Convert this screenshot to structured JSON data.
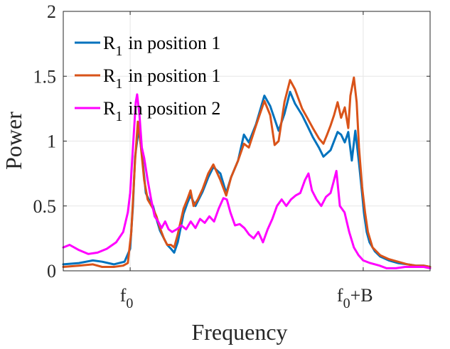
{
  "chart_data": {
    "type": "line",
    "title": "",
    "xlabel": "Frequency",
    "ylabel": "Power",
    "xlim": [
      -0.287,
      1.287
    ],
    "ylim": [
      0,
      2
    ],
    "grid": true,
    "legend_position": "top-left",
    "x_ticks": [
      {
        "value": 0,
        "base": "f",
        "sub": "0",
        "suffix": ""
      },
      {
        "value": 1,
        "base": "f",
        "sub": "0",
        "suffix": "+B"
      }
    ],
    "y_ticks": [
      {
        "value": 0,
        "label": "0"
      },
      {
        "value": 0.5,
        "label": "0.5"
      },
      {
        "value": 1,
        "label": "1"
      },
      {
        "value": 1.5,
        "label": "1.5"
      },
      {
        "value": 2,
        "label": "2"
      }
    ],
    "series": [
      {
        "name": "R1 in position 1",
        "legend": {
          "base": "R",
          "sub": "1",
          "rest": "in position 1"
        },
        "color": "#0072BD",
        "points": [
          [
            -0.287,
            0.05
          ],
          [
            -0.22,
            0.06
          ],
          [
            -0.16,
            0.08
          ],
          [
            -0.12,
            0.07
          ],
          [
            -0.07,
            0.05
          ],
          [
            -0.024,
            0.07
          ],
          [
            0,
            0.17
          ],
          [
            0.012,
            0.5
          ],
          [
            0.021,
            0.88
          ],
          [
            0.037,
            1.1
          ],
          [
            0.052,
            0.88
          ],
          [
            0.067,
            0.6
          ],
          [
            0.08,
            0.55
          ],
          [
            0.098,
            0.5
          ],
          [
            0.113,
            0.4
          ],
          [
            0.128,
            0.31
          ],
          [
            0.145,
            0.25
          ],
          [
            0.159,
            0.2
          ],
          [
            0.175,
            0.17
          ],
          [
            0.189,
            0.14
          ],
          [
            0.204,
            0.22
          ],
          [
            0.229,
            0.44
          ],
          [
            0.245,
            0.52
          ],
          [
            0.259,
            0.58
          ],
          [
            0.28,
            0.5
          ],
          [
            0.311,
            0.61
          ],
          [
            0.335,
            0.72
          ],
          [
            0.357,
            0.8
          ],
          [
            0.387,
            0.75
          ],
          [
            0.412,
            0.6
          ],
          [
            0.433,
            0.72
          ],
          [
            0.463,
            0.85
          ],
          [
            0.488,
            1.05
          ],
          [
            0.509,
            0.99
          ],
          [
            0.54,
            1.13
          ],
          [
            0.576,
            1.35
          ],
          [
            0.601,
            1.27
          ],
          [
            0.637,
            1.08
          ],
          [
            0.662,
            1.21
          ],
          [
            0.686,
            1.38
          ],
          [
            0.707,
            1.29
          ],
          [
            0.738,
            1.2
          ],
          [
            0.76,
            1.12
          ],
          [
            0.784,
            1.03
          ],
          [
            0.81,
            0.95
          ],
          [
            0.829,
            0.88
          ],
          [
            0.86,
            0.93
          ],
          [
            0.89,
            1.07
          ],
          [
            0.905,
            1.05
          ],
          [
            0.921,
            0.99
          ],
          [
            0.936,
            1.07
          ],
          [
            0.951,
            0.85
          ],
          [
            0.966,
            1.08
          ],
          [
            0.982,
            0.83
          ],
          [
            0.995,
            0.6
          ],
          [
            1.003,
            0.45
          ],
          [
            1.015,
            0.3
          ],
          [
            1.027,
            0.22
          ],
          [
            1.05,
            0.15
          ],
          [
            1.073,
            0.11
          ],
          [
            1.11,
            0.08
          ],
          [
            1.149,
            0.06
          ],
          [
            1.19,
            0.05
          ],
          [
            1.226,
            0.04
          ],
          [
            1.26,
            0.04
          ],
          [
            1.287,
            0.03
          ]
        ]
      },
      {
        "name": "R1 in position 1",
        "legend": {
          "base": "R",
          "sub": "1",
          "rest": "in position 1"
        },
        "color": "#D95319",
        "points": [
          [
            -0.287,
            0.03
          ],
          [
            -0.22,
            0.04
          ],
          [
            -0.16,
            0.05
          ],
          [
            -0.12,
            0.03
          ],
          [
            -0.07,
            0.03
          ],
          [
            -0.03,
            0.04
          ],
          [
            -0.01,
            0.06
          ],
          [
            0.005,
            0.3
          ],
          [
            0.021,
            0.85
          ],
          [
            0.033,
            1.15
          ],
          [
            0.045,
            0.98
          ],
          [
            0.06,
            0.7
          ],
          [
            0.075,
            0.55
          ],
          [
            0.098,
            0.48
          ],
          [
            0.113,
            0.42
          ],
          [
            0.128,
            0.33
          ],
          [
            0.145,
            0.25
          ],
          [
            0.159,
            0.2
          ],
          [
            0.175,
            0.2
          ],
          [
            0.189,
            0.18
          ],
          [
            0.204,
            0.28
          ],
          [
            0.229,
            0.48
          ],
          [
            0.245,
            0.55
          ],
          [
            0.259,
            0.62
          ],
          [
            0.272,
            0.5
          ],
          [
            0.29,
            0.55
          ],
          [
            0.311,
            0.63
          ],
          [
            0.335,
            0.75
          ],
          [
            0.357,
            0.82
          ],
          [
            0.387,
            0.7
          ],
          [
            0.412,
            0.58
          ],
          [
            0.433,
            0.72
          ],
          [
            0.463,
            0.85
          ],
          [
            0.488,
            0.98
          ],
          [
            0.509,
            0.95
          ],
          [
            0.54,
            1.12
          ],
          [
            0.576,
            1.31
          ],
          [
            0.601,
            1.2
          ],
          [
            0.62,
            0.97
          ],
          [
            0.637,
            1.0
          ],
          [
            0.662,
            1.3
          ],
          [
            0.686,
            1.47
          ],
          [
            0.707,
            1.4
          ],
          [
            0.738,
            1.25
          ],
          [
            0.76,
            1.18
          ],
          [
            0.784,
            1.1
          ],
          [
            0.81,
            1.02
          ],
          [
            0.829,
            0.98
          ],
          [
            0.845,
            1.05
          ],
          [
            0.86,
            1.12
          ],
          [
            0.875,
            1.2
          ],
          [
            0.89,
            1.3
          ],
          [
            0.905,
            1.18
          ],
          [
            0.921,
            1.26
          ],
          [
            0.936,
            1.1
          ],
          [
            0.945,
            1.35
          ],
          [
            0.96,
            1.49
          ],
          [
            0.972,
            1.3
          ],
          [
            0.982,
            0.95
          ],
          [
            0.995,
            0.65
          ],
          [
            1.008,
            0.45
          ],
          [
            1.02,
            0.3
          ],
          [
            1.04,
            0.18
          ],
          [
            1.073,
            0.12
          ],
          [
            1.11,
            0.09
          ],
          [
            1.149,
            0.07
          ],
          [
            1.19,
            0.05
          ],
          [
            1.226,
            0.04
          ],
          [
            1.26,
            0.04
          ],
          [
            1.287,
            0.03
          ]
        ]
      },
      {
        "name": "R1 in position 2",
        "legend": {
          "base": "R",
          "sub": "1",
          "rest": "in position 2"
        },
        "color": "#FF00FF",
        "points": [
          [
            -0.287,
            0.18
          ],
          [
            -0.26,
            0.2
          ],
          [
            -0.22,
            0.16
          ],
          [
            -0.18,
            0.13
          ],
          [
            -0.14,
            0.14
          ],
          [
            -0.1,
            0.17
          ],
          [
            -0.06,
            0.22
          ],
          [
            -0.03,
            0.3
          ],
          [
            -0.01,
            0.45
          ],
          [
            0.0,
            0.6
          ],
          [
            0.012,
            0.95
          ],
          [
            0.024,
            1.3
          ],
          [
            0.03,
            1.36
          ],
          [
            0.04,
            1.2
          ],
          [
            0.05,
            0.95
          ],
          [
            0.06,
            0.87
          ],
          [
            0.075,
            0.7
          ],
          [
            0.09,
            0.55
          ],
          [
            0.105,
            0.42
          ],
          [
            0.12,
            0.38
          ],
          [
            0.135,
            0.33
          ],
          [
            0.15,
            0.38
          ],
          [
            0.165,
            0.32
          ],
          [
            0.18,
            0.3
          ],
          [
            0.2,
            0.32
          ],
          [
            0.22,
            0.35
          ],
          [
            0.24,
            0.32
          ],
          [
            0.26,
            0.38
          ],
          [
            0.28,
            0.33
          ],
          [
            0.3,
            0.4
          ],
          [
            0.32,
            0.37
          ],
          [
            0.34,
            0.42
          ],
          [
            0.36,
            0.38
          ],
          [
            0.38,
            0.48
          ],
          [
            0.4,
            0.56
          ],
          [
            0.415,
            0.55
          ],
          [
            0.43,
            0.45
          ],
          [
            0.45,
            0.35
          ],
          [
            0.47,
            0.36
          ],
          [
            0.49,
            0.33
          ],
          [
            0.51,
            0.28
          ],
          [
            0.53,
            0.25
          ],
          [
            0.55,
            0.3
          ],
          [
            0.57,
            0.22
          ],
          [
            0.59,
            0.32
          ],
          [
            0.61,
            0.4
          ],
          [
            0.63,
            0.5
          ],
          [
            0.65,
            0.55
          ],
          [
            0.67,
            0.5
          ],
          [
            0.69,
            0.55
          ],
          [
            0.71,
            0.58
          ],
          [
            0.73,
            0.6
          ],
          [
            0.75,
            0.7
          ],
          [
            0.765,
            0.75
          ],
          [
            0.78,
            0.62
          ],
          [
            0.8,
            0.55
          ],
          [
            0.82,
            0.5
          ],
          [
            0.84,
            0.57
          ],
          [
            0.86,
            0.6
          ],
          [
            0.875,
            0.7
          ],
          [
            0.885,
            0.77
          ],
          [
            0.9,
            0.5
          ],
          [
            0.92,
            0.45
          ],
          [
            0.94,
            0.3
          ],
          [
            0.96,
            0.18
          ],
          [
            0.98,
            0.12
          ],
          [
            1.0,
            0.08
          ],
          [
            1.03,
            0.06
          ],
          [
            1.07,
            0.04
          ],
          [
            1.1,
            0.02
          ],
          [
            1.14,
            0.02
          ],
          [
            1.18,
            0.03
          ],
          [
            1.22,
            0.03
          ],
          [
            1.26,
            0.03
          ],
          [
            1.287,
            0.02
          ]
        ]
      }
    ]
  }
}
